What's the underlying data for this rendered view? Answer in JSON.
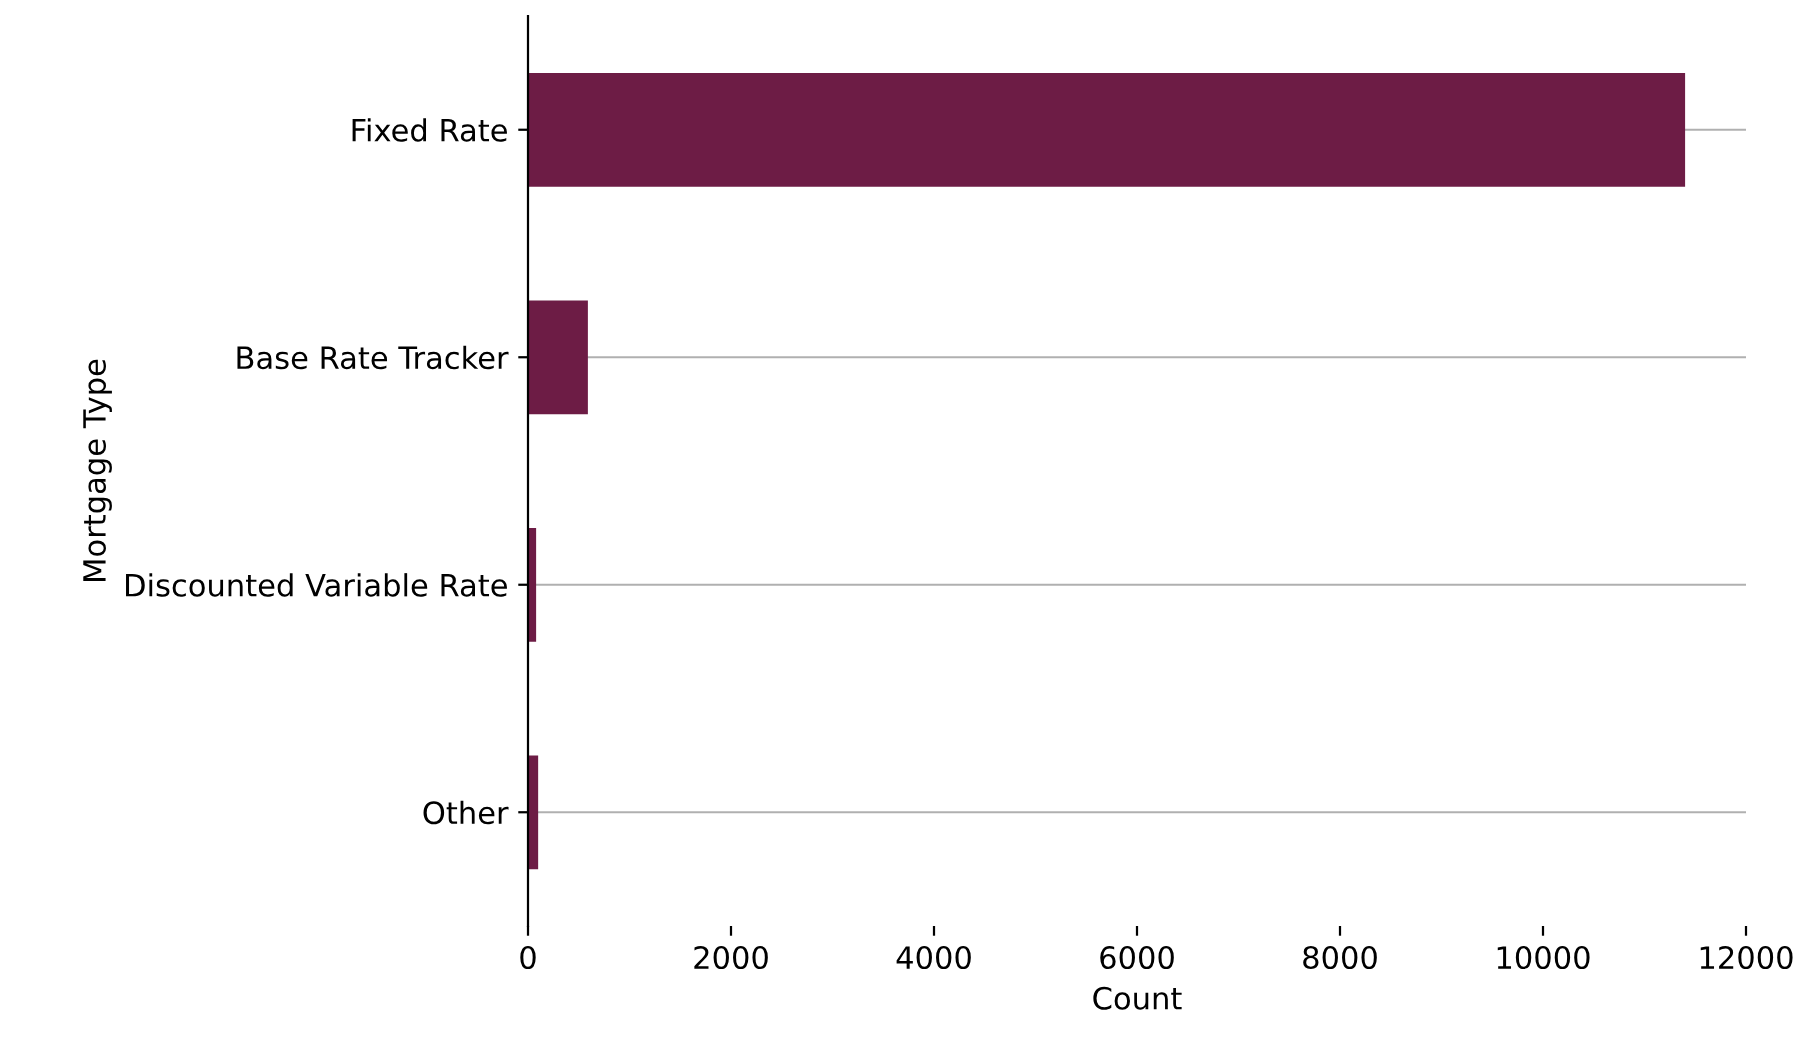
{
  "chart_data": {
    "type": "bar",
    "orientation": "horizontal",
    "xlabel": "Count",
    "ylabel": "Mortgage Type",
    "categories": [
      "Fixed Rate",
      "Base Rate Tracker",
      "Discounted Variable Rate",
      "Other"
    ],
    "values": [
      11400,
      590,
      80,
      100
    ],
    "color": "#6d1c45",
    "xlim": [
      0,
      12000
    ],
    "xticks": [
      0,
      2000,
      4000,
      6000,
      8000,
      10000,
      12000
    ],
    "grid": "y",
    "legend": false
  }
}
